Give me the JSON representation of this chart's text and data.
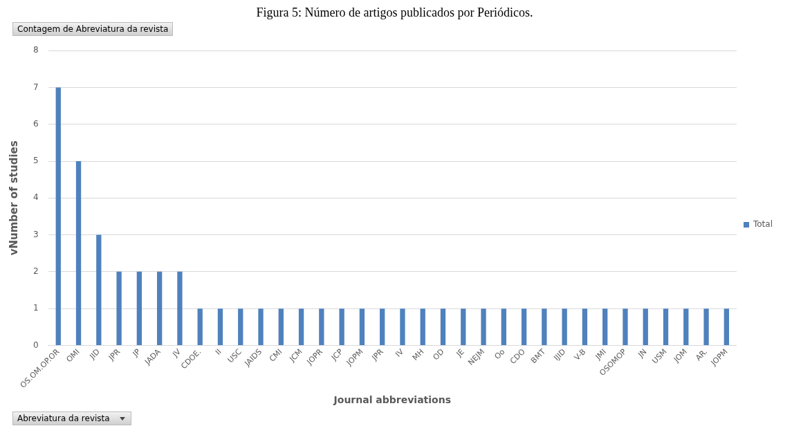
{
  "chart_data": {
    "type": "bar",
    "title": "Figura 5: Número de artigos publicados por Periódicos.",
    "xlabel": "Journal abbreviations",
    "ylabel": "vNumber of studies",
    "annotations": [
      "Contagem de Abreviatura da revista",
      "Abreviatura da revista"
    ],
    "categories": [
      "OS.OM.OP.OR",
      "OMI",
      "JID",
      "JPR",
      "JP",
      "JADA",
      "JV",
      "CDOE.",
      "II",
      "USC",
      "JAIDS",
      "CMI",
      "JCM",
      "JOPR",
      "JCP",
      "JOPM",
      "JPR",
      "IV",
      "MH",
      "OD",
      "JE",
      "NEJM",
      "Oo",
      "CDO",
      "BMT",
      "IJID",
      "V-B",
      "JMI",
      "OSOMOP",
      "JN",
      "USM",
      "JOM",
      "AR.",
      "JOPM"
    ],
    "series": [
      {
        "name": "Total",
        "color": "#4f81bd",
        "values": [
          7,
          5,
          3,
          2,
          2,
          2,
          2,
          1,
          1,
          1,
          1,
          1,
          1,
          1,
          1,
          1,
          1,
          1,
          1,
          1,
          1,
          1,
          1,
          1,
          1,
          1,
          1,
          1,
          1,
          1,
          1,
          1,
          1,
          1
        ]
      }
    ],
    "ylim": [
      0,
      8
    ],
    "yticks": [
      0,
      1,
      2,
      3,
      4,
      5,
      6,
      7,
      8
    ],
    "grid": "y",
    "legend": "right"
  }
}
